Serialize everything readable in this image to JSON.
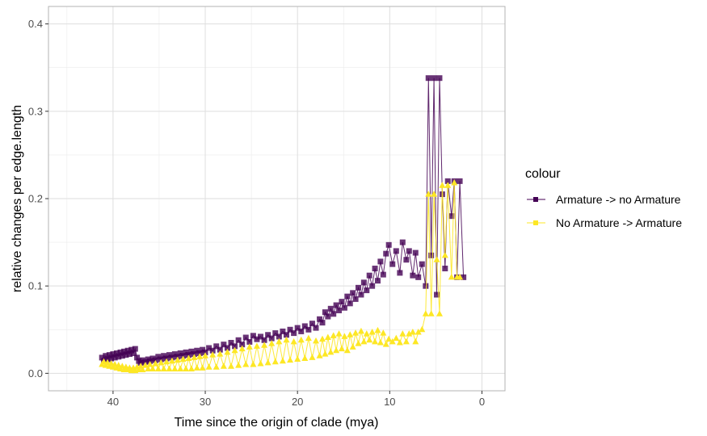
{
  "chart_data": {
    "type": "line",
    "title": "",
    "xlabel": "Time since the origin of clade (mya)",
    "ylabel": "relative changes per edge.length",
    "x_reversed": true,
    "xlim": [
      47,
      -2.5
    ],
    "ylim": [
      -0.02,
      0.42
    ],
    "x_ticks": [
      40,
      30,
      20,
      10,
      0
    ],
    "x_tick_labels": [
      "40",
      "30",
      "20",
      "10",
      "0"
    ],
    "y_ticks": [
      0.0,
      0.1,
      0.2,
      0.3,
      0.4
    ],
    "y_tick_labels": [
      "0.0",
      "0.1",
      "0.2",
      "0.3",
      "0.4"
    ],
    "grid": true,
    "legend": {
      "title": "colour",
      "position": "right",
      "entries": [
        "Armature -> no Armature",
        "No Armature -> Armature"
      ]
    },
    "series": [
      {
        "name": "Armature -> no Armature",
        "color": "#440154",
        "marker": "square",
        "points": [
          [
            41.2,
            0.018
          ],
          [
            41.0,
            0.014
          ],
          [
            40.8,
            0.02
          ],
          [
            40.6,
            0.016
          ],
          [
            40.4,
            0.021
          ],
          [
            40.2,
            0.017
          ],
          [
            40.0,
            0.022
          ],
          [
            39.8,
            0.018
          ],
          [
            39.6,
            0.023
          ],
          [
            39.4,
            0.019
          ],
          [
            39.2,
            0.024
          ],
          [
            39.0,
            0.02
          ],
          [
            38.8,
            0.025
          ],
          [
            38.6,
            0.021
          ],
          [
            38.4,
            0.026
          ],
          [
            38.2,
            0.022
          ],
          [
            38.0,
            0.027
          ],
          [
            37.8,
            0.023
          ],
          [
            37.6,
            0.028
          ],
          [
            37.4,
            0.018
          ],
          [
            37.2,
            0.014
          ],
          [
            37.0,
            0.012
          ],
          [
            36.8,
            0.015
          ],
          [
            36.5,
            0.013
          ],
          [
            36.2,
            0.016
          ],
          [
            36.0,
            0.014
          ],
          [
            35.7,
            0.017
          ],
          [
            35.4,
            0.015
          ],
          [
            35.1,
            0.019
          ],
          [
            34.8,
            0.016
          ],
          [
            34.5,
            0.02
          ],
          [
            34.2,
            0.017
          ],
          [
            33.9,
            0.021
          ],
          [
            33.6,
            0.018
          ],
          [
            33.3,
            0.022
          ],
          [
            33.0,
            0.019
          ],
          [
            32.7,
            0.023
          ],
          [
            32.4,
            0.02
          ],
          [
            32.1,
            0.024
          ],
          [
            31.8,
            0.021
          ],
          [
            31.5,
            0.025
          ],
          [
            31.2,
            0.022
          ],
          [
            30.9,
            0.026
          ],
          [
            30.6,
            0.023
          ],
          [
            30.3,
            0.027
          ],
          [
            30.0,
            0.024
          ],
          [
            29.6,
            0.029
          ],
          [
            29.2,
            0.026
          ],
          [
            28.8,
            0.031
          ],
          [
            28.4,
            0.027
          ],
          [
            28.0,
            0.033
          ],
          [
            27.6,
            0.029
          ],
          [
            27.2,
            0.035
          ],
          [
            26.8,
            0.031
          ],
          [
            26.4,
            0.038
          ],
          [
            26.0,
            0.033
          ],
          [
            25.6,
            0.041
          ],
          [
            25.2,
            0.036
          ],
          [
            24.8,
            0.043
          ],
          [
            24.4,
            0.039
          ],
          [
            24.0,
            0.042
          ],
          [
            23.6,
            0.038
          ],
          [
            23.2,
            0.044
          ],
          [
            22.8,
            0.04
          ],
          [
            22.4,
            0.046
          ],
          [
            22.0,
            0.042
          ],
          [
            21.6,
            0.048
          ],
          [
            21.2,
            0.044
          ],
          [
            20.8,
            0.05
          ],
          [
            20.4,
            0.046
          ],
          [
            20.0,
            0.052
          ],
          [
            19.6,
            0.048
          ],
          [
            19.2,
            0.054
          ],
          [
            18.8,
            0.05
          ],
          [
            18.4,
            0.057
          ],
          [
            18.0,
            0.052
          ],
          [
            17.6,
            0.062
          ],
          [
            17.3,
            0.058
          ],
          [
            17.0,
            0.07
          ],
          [
            16.7,
            0.065
          ],
          [
            16.4,
            0.074
          ],
          [
            16.1,
            0.068
          ],
          [
            15.8,
            0.078
          ],
          [
            15.5,
            0.072
          ],
          [
            15.2,
            0.082
          ],
          [
            14.9,
            0.075
          ],
          [
            14.6,
            0.088
          ],
          [
            14.3,
            0.08
          ],
          [
            14.0,
            0.092
          ],
          [
            13.7,
            0.085
          ],
          [
            13.4,
            0.098
          ],
          [
            13.1,
            0.09
          ],
          [
            12.8,
            0.104
          ],
          [
            12.5,
            0.095
          ],
          [
            12.2,
            0.112
          ],
          [
            11.9,
            0.1
          ],
          [
            11.6,
            0.12
          ],
          [
            11.3,
            0.106
          ],
          [
            11.0,
            0.128
          ],
          [
            10.7,
            0.113
          ],
          [
            10.4,
            0.137
          ],
          [
            10.1,
            0.147
          ],
          [
            9.7,
            0.125
          ],
          [
            9.3,
            0.14
          ],
          [
            8.9,
            0.115
          ],
          [
            8.6,
            0.15
          ],
          [
            8.2,
            0.13
          ],
          [
            7.9,
            0.14
          ],
          [
            7.5,
            0.112
          ],
          [
            7.2,
            0.138
          ],
          [
            6.9,
            0.11
          ],
          [
            6.5,
            0.125
          ],
          [
            6.1,
            0.1
          ],
          [
            5.8,
            0.338
          ],
          [
            5.5,
            0.135
          ],
          [
            5.2,
            0.338
          ],
          [
            4.9,
            0.09
          ],
          [
            4.6,
            0.338
          ],
          [
            4.3,
            0.205
          ],
          [
            4.0,
            0.12
          ],
          [
            3.7,
            0.22
          ],
          [
            3.3,
            0.18
          ],
          [
            3.0,
            0.22
          ],
          [
            2.7,
            0.11
          ],
          [
            2.4,
            0.22
          ],
          [
            2.0,
            0.11
          ]
        ]
      },
      {
        "name": "No Armature -> Armature",
        "color": "#FDE725",
        "marker": "triangle",
        "points": [
          [
            41.2,
            0.01
          ],
          [
            41.0,
            0.013
          ],
          [
            40.8,
            0.009
          ],
          [
            40.6,
            0.012
          ],
          [
            40.4,
            0.008
          ],
          [
            40.2,
            0.011
          ],
          [
            40.0,
            0.007
          ],
          [
            39.8,
            0.01
          ],
          [
            39.6,
            0.006
          ],
          [
            39.4,
            0.009
          ],
          [
            39.2,
            0.005
          ],
          [
            39.0,
            0.008
          ],
          [
            38.8,
            0.004
          ],
          [
            38.6,
            0.007
          ],
          [
            38.4,
            0.004
          ],
          [
            38.2,
            0.006
          ],
          [
            38.0,
            0.003
          ],
          [
            37.8,
            0.006
          ],
          [
            37.6,
            0.003
          ],
          [
            37.4,
            0.007
          ],
          [
            37.2,
            0.004
          ],
          [
            37.0,
            0.008
          ],
          [
            36.8,
            0.004
          ],
          [
            36.5,
            0.009
          ],
          [
            36.2,
            0.005
          ],
          [
            36.0,
            0.01
          ],
          [
            35.7,
            0.005
          ],
          [
            35.4,
            0.011
          ],
          [
            35.1,
            0.005
          ],
          [
            34.8,
            0.012
          ],
          [
            34.5,
            0.005
          ],
          [
            34.2,
            0.013
          ],
          [
            33.9,
            0.005
          ],
          [
            33.6,
            0.014
          ],
          [
            33.3,
            0.005
          ],
          [
            33.0,
            0.015
          ],
          [
            32.7,
            0.005
          ],
          [
            32.4,
            0.016
          ],
          [
            32.1,
            0.005
          ],
          [
            31.8,
            0.017
          ],
          [
            31.5,
            0.005
          ],
          [
            31.2,
            0.018
          ],
          [
            30.9,
            0.006
          ],
          [
            30.6,
            0.019
          ],
          [
            30.3,
            0.006
          ],
          [
            30.0,
            0.02
          ],
          [
            29.6,
            0.007
          ],
          [
            29.2,
            0.021
          ],
          [
            28.8,
            0.007
          ],
          [
            28.4,
            0.022
          ],
          [
            28.0,
            0.008
          ],
          [
            27.6,
            0.024
          ],
          [
            27.2,
            0.008
          ],
          [
            26.8,
            0.026
          ],
          [
            26.4,
            0.009
          ],
          [
            26.0,
            0.028
          ],
          [
            25.6,
            0.01
          ],
          [
            25.2,
            0.03
          ],
          [
            24.8,
            0.01
          ],
          [
            24.4,
            0.031
          ],
          [
            24.0,
            0.011
          ],
          [
            23.6,
            0.032
          ],
          [
            23.2,
            0.012
          ],
          [
            22.8,
            0.034
          ],
          [
            22.4,
            0.013
          ],
          [
            22.0,
            0.036
          ],
          [
            21.6,
            0.014
          ],
          [
            21.2,
            0.038
          ],
          [
            20.8,
            0.015
          ],
          [
            20.4,
            0.036
          ],
          [
            20.0,
            0.016
          ],
          [
            19.6,
            0.038
          ],
          [
            19.2,
            0.017
          ],
          [
            18.8,
            0.04
          ],
          [
            18.4,
            0.018
          ],
          [
            18.0,
            0.037
          ],
          [
            17.6,
            0.02
          ],
          [
            17.3,
            0.039
          ],
          [
            17.0,
            0.022
          ],
          [
            16.7,
            0.041
          ],
          [
            16.4,
            0.024
          ],
          [
            16.1,
            0.043
          ],
          [
            15.8,
            0.026
          ],
          [
            15.5,
            0.045
          ],
          [
            15.2,
            0.028
          ],
          [
            14.9,
            0.042
          ],
          [
            14.6,
            0.026
          ],
          [
            14.3,
            0.044
          ],
          [
            14.0,
            0.03
          ],
          [
            13.7,
            0.046
          ],
          [
            13.4,
            0.034
          ],
          [
            13.1,
            0.048
          ],
          [
            12.8,
            0.036
          ],
          [
            12.5,
            0.045
          ],
          [
            12.2,
            0.038
          ],
          [
            11.9,
            0.047
          ],
          [
            11.6,
            0.036
          ],
          [
            11.3,
            0.049
          ],
          [
            11.0,
            0.035
          ],
          [
            10.7,
            0.046
          ],
          [
            10.4,
            0.033
          ],
          [
            10.1,
            0.039
          ],
          [
            9.7,
            0.036
          ],
          [
            9.3,
            0.04
          ],
          [
            8.9,
            0.035
          ],
          [
            8.6,
            0.045
          ],
          [
            8.2,
            0.036
          ],
          [
            7.9,
            0.045
          ],
          [
            7.5,
            0.047
          ],
          [
            7.2,
            0.036
          ],
          [
            6.9,
            0.047
          ],
          [
            6.5,
            0.05
          ],
          [
            6.1,
            0.068
          ],
          [
            5.8,
            0.205
          ],
          [
            5.5,
            0.068
          ],
          [
            5.2,
            0.205
          ],
          [
            4.9,
            0.13
          ],
          [
            4.6,
            0.068
          ],
          [
            4.3,
            0.215
          ],
          [
            4.0,
            0.135
          ],
          [
            3.7,
            0.215
          ],
          [
            3.3,
            0.11
          ],
          [
            3.0,
            0.218
          ],
          [
            2.7,
            0.11
          ],
          [
            2.4,
            0.11
          ]
        ]
      }
    ]
  }
}
